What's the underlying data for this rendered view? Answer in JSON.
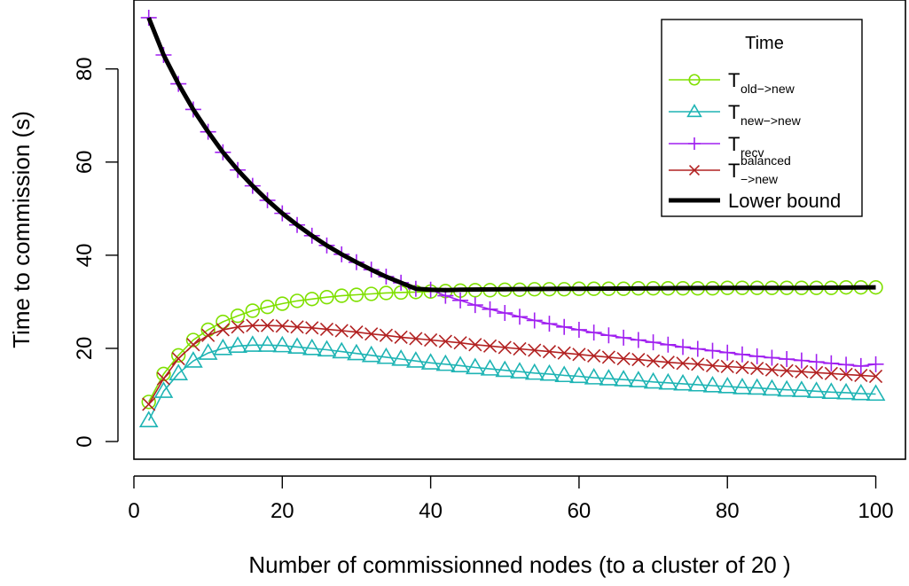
{
  "chart_data": {
    "type": "line",
    "xlabel": "Number of commissionned nodes (to a cluster of 20 )",
    "ylabel": "Time to commission (s)",
    "xlim": [
      0,
      104
    ],
    "ylim": [
      -3.8,
      94.8
    ],
    "x_ticks": [
      0,
      20,
      40,
      60,
      80,
      100
    ],
    "y_ticks": [
      0,
      20,
      40,
      60,
      80
    ],
    "x_tick_labels": [
      "0",
      "20",
      "40",
      "60",
      "80",
      "100"
    ],
    "y_tick_labels": [
      "0",
      "20",
      "40",
      "60",
      "80"
    ],
    "grid": false,
    "legend": {
      "title": "Time",
      "position": "top-right",
      "entries": [
        {
          "base": "T",
          "sub": "old−>new",
          "sup": ""
        },
        {
          "base": "T",
          "sub": "new−>new",
          "sup": ""
        },
        {
          "base": "T",
          "sub": "recv",
          "sup": ""
        },
        {
          "base": "T",
          "sub": "−>new",
          "sup": "balanced"
        },
        {
          "base": "Lower bound",
          "sub": "",
          "sup": ""
        }
      ]
    },
    "series": [
      {
        "name": "T_old->new",
        "color": "#7FE000",
        "marker": "circle",
        "x": [
          2,
          4,
          6,
          8,
          10,
          12,
          14,
          16,
          18,
          20,
          22,
          24,
          26,
          28,
          30,
          32,
          34,
          36,
          38,
          40,
          42,
          44,
          46,
          48,
          50,
          52,
          54,
          56,
          58,
          60,
          62,
          64,
          66,
          68,
          70,
          72,
          74,
          76,
          78,
          80,
          82,
          84,
          86,
          88,
          90,
          92,
          94,
          96,
          98,
          100
        ],
        "y": [
          8.5,
          14.5,
          18.5,
          21.8,
          24.0,
          25.7,
          27.0,
          28.1,
          28.9,
          29.6,
          30.2,
          30.6,
          31.0,
          31.3,
          31.5,
          31.7,
          31.9,
          32.0,
          32.1,
          32.2,
          32.3,
          32.4,
          32.5,
          32.5,
          32.6,
          32.6,
          32.7,
          32.7,
          32.7,
          32.8,
          32.8,
          32.8,
          32.8,
          32.9,
          32.9,
          32.9,
          32.9,
          32.9,
          32.9,
          33.0,
          33.0,
          33.0,
          33.0,
          33.0,
          33.0,
          33.0,
          33.0,
          33.1,
          33.1,
          33.1
        ]
      },
      {
        "name": "T_new->new",
        "color": "#1EB4B4",
        "marker": "triangle",
        "x": [
          2,
          4,
          6,
          8,
          10,
          12,
          14,
          16,
          18,
          20,
          22,
          24,
          26,
          28,
          30,
          32,
          34,
          36,
          38,
          40,
          42,
          44,
          46,
          48,
          50,
          52,
          54,
          56,
          58,
          60,
          62,
          64,
          66,
          68,
          70,
          72,
          74,
          76,
          78,
          80,
          82,
          84,
          86,
          88,
          90,
          92,
          94,
          96,
          98,
          100
        ],
        "y": [
          4.5,
          10.8,
          14.6,
          17.3,
          19.0,
          20.0,
          20.5,
          20.7,
          20.7,
          20.6,
          20.3,
          20.0,
          19.7,
          19.3,
          18.9,
          18.5,
          18.1,
          17.7,
          17.3,
          16.9,
          16.6,
          16.3,
          15.9,
          15.6,
          15.3,
          15.0,
          14.7,
          14.5,
          14.2,
          14.0,
          13.7,
          13.5,
          13.3,
          13.1,
          12.8,
          12.6,
          12.4,
          12.2,
          12.0,
          11.8,
          11.6,
          11.5,
          11.3,
          11.1,
          11.0,
          10.8,
          10.6,
          10.5,
          10.3,
          10.2
        ]
      },
      {
        "name": "T_recv",
        "color": "#A020F0",
        "marker": "plus",
        "x": [
          2,
          4,
          6,
          8,
          10,
          12,
          14,
          16,
          18,
          20,
          22,
          24,
          26,
          28,
          30,
          32,
          34,
          36,
          38,
          40,
          42,
          44,
          46,
          48,
          50,
          52,
          54,
          56,
          58,
          60,
          62,
          64,
          66,
          68,
          70,
          72,
          74,
          76,
          78,
          80,
          82,
          84,
          86,
          88,
          90,
          92,
          94,
          96,
          98,
          100
        ],
        "y": [
          91.0,
          83.0,
          76.8,
          71.3,
          66.5,
          62.1,
          58.3,
          54.9,
          51.8,
          49.0,
          46.5,
          44.2,
          42.1,
          40.2,
          38.5,
          36.9,
          35.4,
          34.1,
          32.8,
          32.6,
          31.3,
          30.3,
          29.3,
          28.4,
          27.6,
          26.8,
          26.0,
          25.3,
          24.6,
          24.0,
          23.4,
          22.8,
          22.3,
          21.8,
          21.3,
          20.8,
          20.3,
          19.9,
          19.5,
          19.1,
          18.7,
          18.3,
          18.0,
          17.7,
          17.4,
          17.1,
          16.8,
          16.5,
          16.2,
          16.6
        ]
      },
      {
        "name": "T_->new^balanced",
        "color": "#B22222",
        "marker": "cross",
        "x": [
          2,
          4,
          6,
          8,
          10,
          12,
          14,
          16,
          18,
          20,
          22,
          24,
          26,
          28,
          30,
          32,
          34,
          36,
          38,
          40,
          42,
          44,
          46,
          48,
          50,
          52,
          54,
          56,
          58,
          60,
          62,
          64,
          66,
          68,
          70,
          72,
          74,
          76,
          78,
          80,
          82,
          84,
          86,
          88,
          90,
          92,
          94,
          96,
          98,
          100
        ],
        "y": [
          8.0,
          13.5,
          17.8,
          20.8,
          22.8,
          24.0,
          24.6,
          24.9,
          24.9,
          24.8,
          24.6,
          24.4,
          24.1,
          23.8,
          23.5,
          23.1,
          22.8,
          22.4,
          22.1,
          21.8,
          21.5,
          21.2,
          20.8,
          20.5,
          20.2,
          19.9,
          19.6,
          19.3,
          19.0,
          18.7,
          18.4,
          18.1,
          17.8,
          17.6,
          17.3,
          17.0,
          16.8,
          16.6,
          16.3,
          16.1,
          15.9,
          15.7,
          15.4,
          15.2,
          15.0,
          14.8,
          14.6,
          14.4,
          14.2,
          14.0
        ]
      },
      {
        "name": "Lower bound",
        "color": "#000000",
        "marker": "none",
        "x": [
          2,
          4,
          6,
          8,
          10,
          12,
          14,
          16,
          18,
          20,
          22,
          24,
          26,
          28,
          30,
          32,
          34,
          36,
          38,
          40,
          42,
          44,
          50,
          60,
          70,
          80,
          90,
          100
        ],
        "y": [
          91.0,
          83.0,
          76.8,
          71.3,
          66.5,
          62.1,
          58.3,
          54.9,
          51.8,
          49.0,
          46.5,
          44.2,
          42.1,
          40.2,
          38.5,
          36.9,
          35.4,
          34.1,
          32.8,
          32.6,
          32.5,
          32.6,
          32.7,
          32.8,
          32.9,
          33.0,
          33.0,
          33.1
        ]
      }
    ]
  }
}
